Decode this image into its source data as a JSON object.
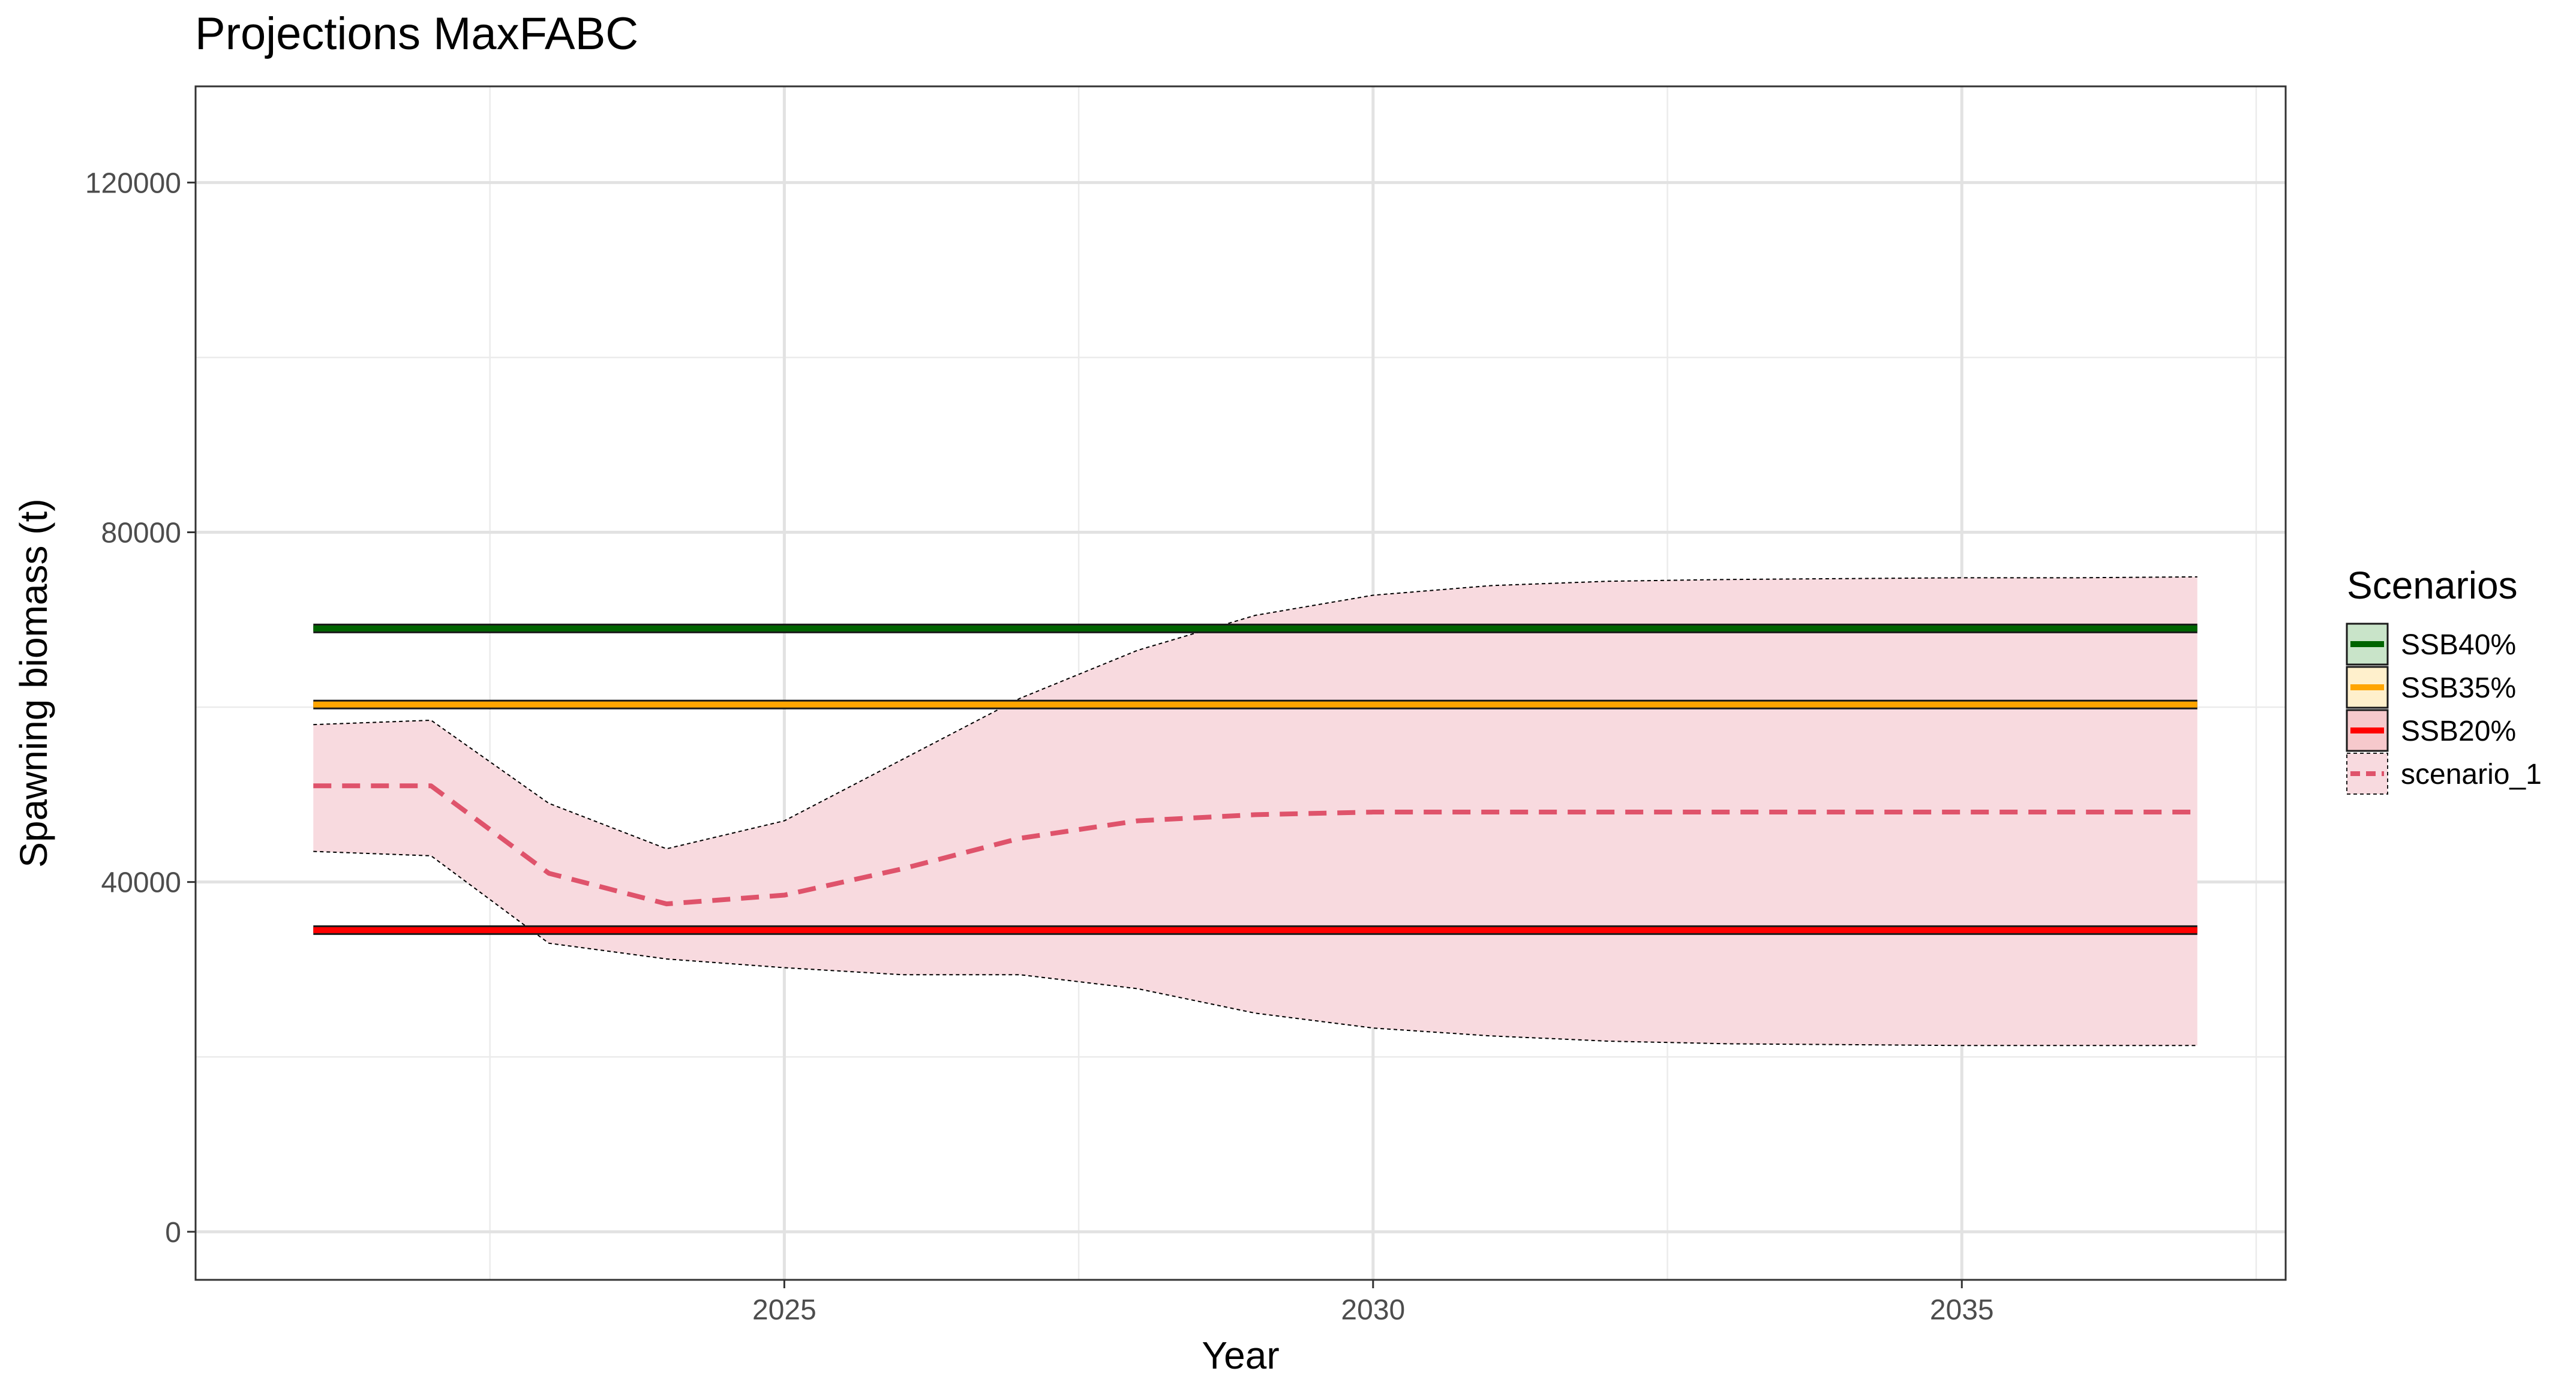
{
  "chart_data": {
    "type": "line",
    "title": "Projections MaxFABC",
    "xlabel": "Year",
    "ylabel": "Spawning biomass (t)",
    "xlim": [
      2020.0,
      2037.75
    ],
    "ylim": [
      -5500,
      131000
    ],
    "x_ticks": [
      2025,
      2030,
      2035
    ],
    "x_tick_labels": [
      "2025",
      "2030",
      "2035"
    ],
    "y_ticks": [
      0,
      40000,
      80000,
      120000
    ],
    "y_tick_labels": [
      "0",
      "40000",
      "80000",
      "120000"
    ],
    "grid": true,
    "legend": {
      "title": "Scenarios",
      "position": "right",
      "entries": [
        "SSB40%",
        "SSB35%",
        "SSB20%",
        "scenario_1"
      ]
    },
    "reference_lines": [
      {
        "name": "SSB40%",
        "value": 69000,
        "x": [
          2021,
          2037
        ],
        "color": "#006400",
        "fill": "#c9e4c9"
      },
      {
        "name": "SSB35%",
        "value": 60300,
        "x": [
          2021,
          2037
        ],
        "color": "#ffa500",
        "fill": "#fff0cc"
      },
      {
        "name": "SSB20%",
        "value": 34500,
        "x": [
          2021,
          2037
        ],
        "color": "#ff0000",
        "fill": "#f6c9cc"
      }
    ],
    "series": [
      {
        "name": "scenario_1",
        "x": [
          2021,
          2022,
          2023,
          2024,
          2025,
          2026,
          2027,
          2028,
          2029,
          2030,
          2031,
          2032,
          2033,
          2034,
          2035,
          2036,
          2037
        ],
        "values": [
          51000,
          51000,
          41000,
          37500,
          38500,
          41500,
          45000,
          47000,
          47700,
          48000,
          48000,
          48000,
          48000,
          48000,
          48000,
          48000,
          48000
        ],
        "lower": [
          43500,
          43000,
          33000,
          31200,
          30200,
          29400,
          29400,
          27800,
          25000,
          23300,
          22400,
          21800,
          21500,
          21400,
          21300,
          21300,
          21300
        ],
        "upper": [
          58000,
          58500,
          49000,
          43800,
          47000,
          54000,
          61000,
          66500,
          70500,
          72800,
          73900,
          74400,
          74600,
          74700,
          74800,
          74800,
          74900
        ],
        "color": "#df536b",
        "band_fill": "#f8dadf"
      }
    ]
  }
}
